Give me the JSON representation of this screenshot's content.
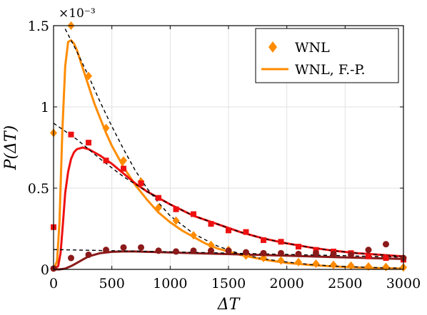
{
  "chart_data": {
    "type": "scatter",
    "xlabel": "ΔT",
    "ylabel": "P(ΔT)",
    "exponent_label": "×10⁻³",
    "xlim": [
      0,
      3000
    ],
    "ylim": [
      0,
      0.0015
    ],
    "x_ticks": [
      0,
      500,
      1000,
      1500,
      2000,
      2500,
      3000
    ],
    "y_ticks": [
      0,
      0.0005,
      0.001,
      0.0015
    ],
    "y_tick_labels": [
      "0",
      "0.5",
      "1",
      "1.5"
    ],
    "grid": true,
    "legend_position": "top-right",
    "legend": [
      {
        "label": "WNL",
        "marker": "diamond",
        "color": "#ff8c00"
      },
      {
        "label": "WNL, F.-P.",
        "marker": "line",
        "color": "#ff8c00"
      }
    ],
    "series": [
      {
        "kind": "markers",
        "marker": "diamond",
        "color": "#ff8c00",
        "x": [
          0,
          150,
          300,
          450,
          600,
          750,
          900,
          1050,
          1200,
          1350,
          1500,
          1650,
          1800,
          1950,
          2100,
          2250,
          2400,
          2550,
          2700,
          2850,
          3000
        ],
        "y": [
          0.00084,
          0.0015,
          0.00119,
          0.00087,
          0.00067,
          0.00054,
          0.00038,
          0.0003,
          0.00021,
          0.00015,
          0.00012,
          8.5e-05,
          7e-05,
          5.5e-05,
          4.5e-05,
          3.5e-05,
          2.8e-05,
          2.3e-05,
          1.8e-05,
          1.5e-05,
          1.2e-05
        ]
      },
      {
        "kind": "markers",
        "marker": "square",
        "color": "#ee1111",
        "x": [
          0,
          150,
          300,
          450,
          600,
          750,
          900,
          1050,
          1200,
          1350,
          1500,
          1650,
          1800,
          1950,
          2100,
          2250,
          2400,
          2550,
          2700,
          2850,
          3000
        ],
        "y": [
          0.00026,
          0.00083,
          0.00078,
          0.00067,
          0.00062,
          0.00053,
          0.00044,
          0.00037,
          0.00034,
          0.00028,
          0.00024,
          0.00023,
          0.00018,
          0.00017,
          0.00014,
          0.00012,
          0.00011,
          0.0001,
          8e-05,
          7e-05,
          6e-05
        ]
      },
      {
        "kind": "markers",
        "marker": "circle",
        "color": "#8b1a1a",
        "x": [
          0,
          150,
          300,
          450,
          600,
          750,
          900,
          1050,
          1200,
          1350,
          1500,
          1650,
          1800,
          1950,
          2100,
          2250,
          2400,
          2550,
          2700,
          2850,
          3000
        ],
        "y": [
          5e-06,
          7e-05,
          9e-05,
          0.00012,
          0.000135,
          0.000135,
          0.000115,
          0.00011,
          0.000115,
          0.000115,
          0.000115,
          0.000105,
          0.0001,
          0.0001,
          9.5e-05,
          0.0001,
          9.5e-05,
          9e-05,
          0.00012,
          0.000155,
          7e-05
        ]
      },
      {
        "kind": "line",
        "color": "#ff8c00",
        "x": [
          0,
          30,
          50,
          75,
          100,
          125,
          150,
          175,
          200,
          250,
          300,
          350,
          400,
          450,
          500,
          600,
          700,
          800,
          900,
          1000,
          1100,
          1200,
          1300,
          1400,
          1500,
          1600,
          1700,
          1800,
          1900,
          2000,
          2200,
          2400,
          2600,
          2800,
          3000
        ],
        "y": [
          0,
          5e-05,
          0.00028,
          0.00085,
          0.00125,
          0.0014,
          0.00141,
          0.00139,
          0.00135,
          0.00124,
          0.00113,
          0.00102,
          0.00093,
          0.00084,
          0.00076,
          0.00063,
          0.00052,
          0.00043,
          0.00035,
          0.00029,
          0.00024,
          0.0002,
          0.00016,
          0.00013,
          0.00011,
          9e-05,
          7.5e-05,
          6e-05,
          5e-05,
          4e-05,
          2.7e-05,
          1.8e-05,
          1.2e-05,
          8e-06,
          5e-06
        ]
      },
      {
        "kind": "line",
        "color": "#ee1111",
        "x": [
          0,
          40,
          60,
          80,
          100,
          125,
          150,
          175,
          200,
          250,
          300,
          350,
          400,
          500,
          600,
          700,
          800,
          900,
          1000,
          1200,
          1400,
          1600,
          1800,
          2000,
          2200,
          2400,
          2600,
          2800,
          3000
        ],
        "y": [
          0,
          2e-05,
          0.0001,
          0.00028,
          0.00047,
          0.0006,
          0.00068,
          0.00072,
          0.00074,
          0.00075,
          0.00074,
          0.00072,
          0.0007,
          0.00065,
          0.00059,
          0.00053,
          0.00048,
          0.00044,
          0.0004,
          0.00033,
          0.00028,
          0.00023,
          0.00019,
          0.00016,
          0.000135,
          0.000115,
          0.0001,
          9e-05,
          8e-05
        ]
      },
      {
        "kind": "line",
        "color": "#8b1a1a",
        "x": [
          0,
          50,
          100,
          150,
          200,
          250,
          300,
          400,
          500,
          600,
          700,
          800,
          900,
          1000,
          1200,
          1400,
          1600,
          1800,
          2000,
          2200,
          2400,
          2600,
          2800,
          3000
        ],
        "y": [
          0,
          0,
          5e-06,
          2e-05,
          4e-05,
          6e-05,
          8e-05,
          0.0001,
          0.000108,
          0.00011,
          0.00011,
          0.000108,
          0.000106,
          0.000104,
          0.0001,
          9.6e-05,
          9.2e-05,
          8.8e-05,
          8.4e-05,
          8e-05,
          7.6e-05,
          7.2e-05,
          6.8e-05,
          6.4e-05
        ]
      },
      {
        "kind": "dashed",
        "color": "#000000",
        "x": [
          100,
          200,
          300,
          400,
          500,
          600,
          700,
          800,
          900,
          1000,
          1200,
          1400,
          1600,
          1800,
          2000,
          2200,
          2400,
          2600,
          2800,
          3000
        ],
        "y": [
          0.00148,
          0.00134,
          0.00119,
          0.00103,
          0.00088,
          0.00074,
          0.00061,
          0.0005,
          0.00041,
          0.00033,
          0.00022,
          0.000145,
          9.5e-05,
          6.5e-05,
          4.5e-05,
          3e-05,
          2e-05,
          1.5e-05,
          1e-05,
          7e-06
        ]
      },
      {
        "kind": "dashed",
        "color": "#000000",
        "x": [
          0,
          200,
          400,
          600,
          800,
          1000,
          1200,
          1400,
          1600,
          1800,
          2000,
          2200,
          2400,
          2600,
          2800,
          3000
        ],
        "y": [
          0.0009,
          0.0008,
          0.00068,
          0.00057,
          0.00048,
          0.0004,
          0.00033,
          0.00028,
          0.00023,
          0.00019,
          0.00016,
          0.000135,
          0.000115,
          0.0001,
          9e-05,
          8e-05
        ]
      },
      {
        "kind": "dashed",
        "color": "#000000",
        "x": [
          0,
          500,
          1000,
          1500,
          2000,
          2500,
          3000
        ],
        "y": [
          0.000122,
          0.000115,
          0.000108,
          0.0001,
          9.2e-05,
          8.4e-05,
          7.5e-05
        ]
      }
    ]
  }
}
